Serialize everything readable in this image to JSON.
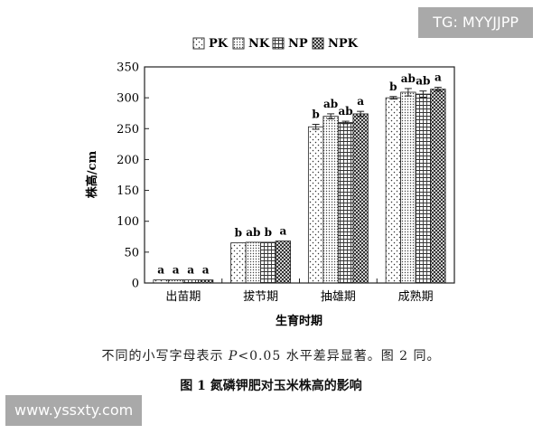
{
  "chart_data": {
    "type": "bar",
    "xlabel": "生育时期",
    "ylabel": "株高/cm",
    "ylim": [
      0,
      350
    ],
    "yticks": [
      0,
      50,
      100,
      150,
      200,
      250,
      300,
      350
    ],
    "categories": [
      "出苗期",
      "拔节期",
      "抽雄期",
      "成熟期"
    ],
    "legend_position": "top",
    "series": [
      {
        "name": "PK",
        "pattern": "dots",
        "values": [
          5,
          65,
          253,
          300
        ],
        "errors": [
          0,
          0,
          4,
          2
        ],
        "labels": [
          "a",
          "b",
          "b",
          "b"
        ]
      },
      {
        "name": "NK",
        "pattern": "dense-dots",
        "values": [
          5,
          66,
          270,
          309
        ],
        "errors": [
          0,
          0,
          4,
          6
        ],
        "labels": [
          "a",
          "ab",
          "ab",
          "ab"
        ]
      },
      {
        "name": "NP",
        "pattern": "grid",
        "values": [
          5,
          66,
          260,
          306
        ],
        "errors": [
          0,
          0,
          2,
          5
        ],
        "labels": [
          "a",
          "b",
          "ab",
          "ab"
        ]
      },
      {
        "name": "NPK",
        "pattern": "checker",
        "values": [
          5,
          68,
          274,
          314
        ],
        "errors": [
          0,
          0,
          4,
          3
        ],
        "labels": [
          "a",
          "a",
          "a",
          "a"
        ]
      }
    ]
  },
  "caption": {
    "note_before": "不同的小写字母表示 ",
    "note_italic": "P",
    "note_after": "<0.05 水平差异显著。图 2 同。",
    "figure_title": "图 1    氮磷钾肥对玉米株高的影响"
  },
  "watermarks": {
    "top_right": "TG: MYYJJPP",
    "bottom_left": "www.yssxty.com"
  },
  "colors": {
    "bar_border": "#222222",
    "pattern_ink": "#333333",
    "watermark_bg": "#a9a9a9"
  }
}
